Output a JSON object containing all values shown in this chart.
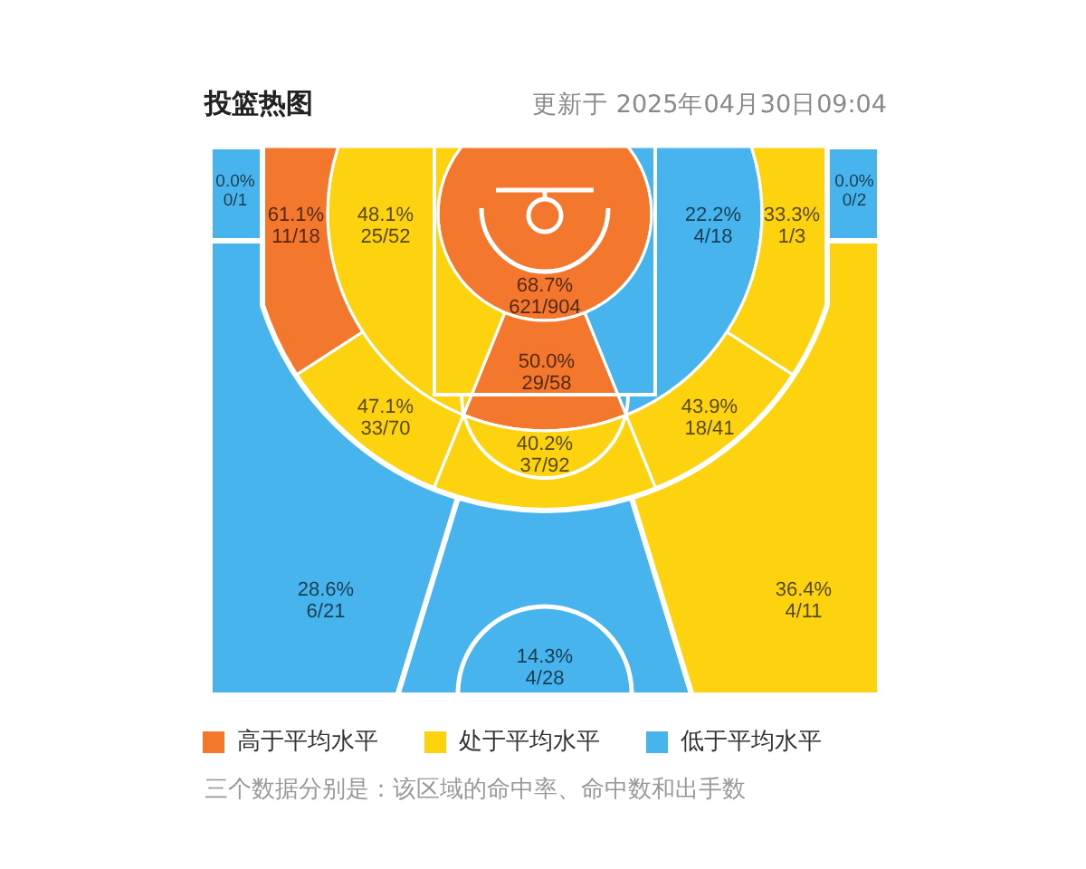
{
  "chart_data": {
    "type": "other",
    "title": "投篮热图",
    "subtitle": "更新于 2025年04月30日09:04",
    "categories": [
      "621/904",
      "29/58",
      "25/52",
      "4/18",
      "11/18",
      "33/70",
      "37/92",
      "18/41",
      "1/3",
      "0/1",
      "6/21",
      "4/28",
      "4/11",
      "0/2"
    ],
    "series": [
      {
        "name": "高于平均水平",
        "color": "#f4772e",
        "values": [
          68.7,
          50.0,
          null,
          null,
          61.1,
          null,
          null,
          null,
          null,
          null,
          null,
          null,
          null,
          null
        ],
        "value_labels": [
          "68.7%",
          "50.0%",
          null,
          null,
          "61.1%",
          null,
          null,
          null,
          null,
          null,
          null,
          null,
          null,
          null
        ]
      },
      {
        "name": "处于平均水平",
        "color": "#fdd30f",
        "values": [
          null,
          null,
          48.1,
          null,
          null,
          47.1,
          40.2,
          43.9,
          33.3,
          null,
          null,
          null,
          36.4,
          null
        ],
        "value_labels": [
          null,
          null,
          "48.1%",
          null,
          null,
          "47.1%",
          "40.2%",
          "43.9%",
          "33.3%",
          null,
          null,
          null,
          "36.4%",
          null
        ]
      },
      {
        "name": "低于平均水平",
        "color": "#48b4ee",
        "values": [
          null,
          null,
          null,
          22.2,
          null,
          null,
          null,
          null,
          null,
          0.0,
          28.6,
          14.3,
          null,
          0.0
        ],
        "value_labels": [
          null,
          null,
          null,
          "22.2%",
          null,
          null,
          null,
          null,
          null,
          "0.0%",
          "28.6%",
          "14.3%",
          null,
          "0.0%"
        ]
      }
    ],
    "legend": "bottom",
    "annotations": [
      "三个数据分别是：该区域的命中率、命中数和出手数"
    ]
  }
}
